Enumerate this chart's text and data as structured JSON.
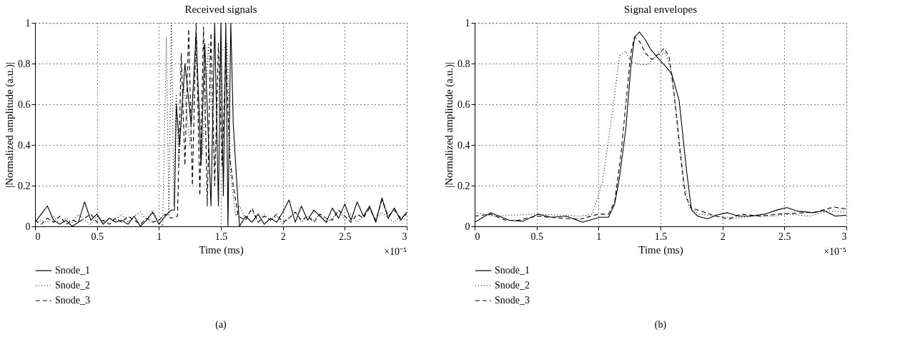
{
  "chart_data": [
    {
      "type": "line",
      "title": "Received signals",
      "xlabel": "Time (ms)",
      "ylabel": "|Normalized amplitude (a.u.)|",
      "annotations": [
        "×10⁻⁵",
        "(a)"
      ],
      "xlim": [
        0,
        3
      ],
      "ylim": [
        0,
        1
      ],
      "xticks": [
        0,
        0.5,
        1,
        1.5,
        2,
        2.5,
        3
      ],
      "yticks": [
        0,
        0.2,
        0.4,
        0.6,
        0.8,
        1
      ],
      "grid": true,
      "legend": "bottom left",
      "series": [
        {
          "name": "Snode_1",
          "color": "#000000",
          "line_style": "solid",
          "x": [
            0,
            0.05,
            0.1,
            0.15,
            0.2,
            0.25,
            0.3,
            0.35,
            0.4,
            0.45,
            0.5,
            0.55,
            0.6,
            0.65,
            0.7,
            0.75,
            0.8,
            0.85,
            0.9,
            0.95,
            1.0,
            1.05,
            1.1,
            1.125,
            1.14,
            1.166,
            1.21,
            1.26,
            1.3,
            1.34,
            1.37,
            1.42,
            1.45,
            1.48,
            1.5,
            1.52,
            1.54,
            1.557,
            1.58,
            1.6,
            1.65,
            1.7,
            1.75,
            1.8,
            1.85,
            1.9,
            1.95,
            2.0,
            2.05,
            2.1,
            2.15,
            2.2,
            2.25,
            2.3,
            2.35,
            2.4,
            2.45,
            2.5,
            2.55,
            2.6,
            2.65,
            2.7,
            2.75,
            2.8,
            2.85,
            2.9,
            2.95,
            3.0
          ],
          "values": [
            0.02,
            0.06,
            0.1,
            0.03,
            0.01,
            0.03,
            0.0,
            0.02,
            0.12,
            0.03,
            0.06,
            0.01,
            0.04,
            0.02,
            0.03,
            0.01,
            0.05,
            0.0,
            0.03,
            0.07,
            0.01,
            0.05,
            0.08,
            0.08,
            0.6,
            0.4,
            0.8,
            0.5,
            0.95,
            0.3,
            0.9,
            0.1,
            1.0,
            0.1,
            1.0,
            0.15,
            1.0,
            0.0,
            1.0,
            0.5,
            0.0,
            0.05,
            0.02,
            0.06,
            0.01,
            0.04,
            0.02,
            0.07,
            0.13,
            0.02,
            0.1,
            0.03,
            0.08,
            0.05,
            0.02,
            0.09,
            0.04,
            0.11,
            0.03,
            0.12,
            0.05,
            0.1,
            0.02,
            0.14,
            0.04,
            0.09,
            0.03,
            0.07
          ]
        },
        {
          "name": "Snode_2",
          "color": "#000000",
          "line_style": "dotted",
          "x": [
            0,
            0.05,
            0.1,
            0.15,
            0.2,
            0.25,
            0.3,
            0.35,
            0.4,
            0.45,
            0.5,
            0.55,
            0.6,
            0.65,
            0.7,
            0.75,
            0.8,
            0.85,
            0.9,
            0.95,
            1.0,
            1.03,
            1.06,
            1.08,
            1.1,
            1.12,
            1.14,
            1.16,
            1.2,
            1.25,
            1.3,
            1.35,
            1.4,
            1.45,
            1.5,
            1.55,
            1.58,
            1.62,
            1.65,
            1.7,
            1.75,
            1.8,
            1.85,
            1.9,
            1.95,
            2.0,
            2.05,
            2.1,
            2.15,
            2.2,
            2.25,
            2.3,
            2.35,
            2.4,
            2.45,
            2.5,
            2.55,
            2.6,
            2.65,
            2.7,
            2.75,
            2.8,
            2.85,
            2.9,
            2.95,
            3.0
          ],
          "values": [
            0.01,
            0.03,
            0.02,
            0.05,
            0.01,
            0.04,
            0.02,
            0.06,
            0.03,
            0.01,
            0.05,
            0.02,
            0.04,
            0.03,
            0.06,
            0.02,
            0.05,
            0.07,
            0.03,
            0.08,
            0.02,
            0.0,
            0.93,
            0.05,
            1.0,
            0.1,
            0.65,
            0.3,
            0.7,
            0.4,
            0.85,
            0.35,
            0.9,
            0.3,
            0.85,
            0.9,
            0.25,
            0.05,
            0.1,
            0.04,
            0.08,
            0.02,
            0.06,
            0.03,
            0.05,
            0.01,
            0.04,
            0.07,
            0.02,
            0.05,
            0.03,
            0.06,
            0.02,
            0.04,
            0.08,
            0.03,
            0.06,
            0.02,
            0.05,
            0.09,
            0.03,
            0.07,
            0.04,
            0.02,
            0.05,
            0.03
          ]
        },
        {
          "name": "Snode_3",
          "color": "#000000",
          "line_style": "dashed",
          "x": [
            0,
            0.05,
            0.1,
            0.15,
            0.2,
            0.25,
            0.3,
            0.35,
            0.4,
            0.45,
            0.5,
            0.55,
            0.6,
            0.65,
            0.7,
            0.75,
            0.8,
            0.85,
            0.9,
            0.95,
            1.0,
            1.05,
            1.1,
            1.15,
            1.18,
            1.21,
            1.24,
            1.27,
            1.3,
            1.33,
            1.36,
            1.39,
            1.42,
            1.45,
            1.48,
            1.51,
            1.54,
            1.57,
            1.6,
            1.64,
            1.7,
            1.75,
            1.8,
            1.85,
            1.9,
            1.95,
            2.0,
            2.05,
            2.1,
            2.15,
            2.2,
            2.25,
            2.3,
            2.35,
            2.4,
            2.45,
            2.5,
            2.55,
            2.6,
            2.65,
            2.7,
            2.75,
            2.8,
            2.85,
            2.9,
            2.95,
            3.0
          ],
          "values": [
            0.03,
            0.01,
            0.04,
            0.02,
            0.05,
            0.01,
            0.03,
            0.02,
            0.04,
            0.06,
            0.02,
            0.03,
            0.01,
            0.04,
            0.02,
            0.05,
            0.03,
            0.01,
            0.04,
            0.02,
            0.03,
            0.06,
            0.04,
            0.05,
            0.85,
            0.3,
            0.97,
            0.2,
            1.0,
            0.15,
            0.98,
            0.1,
            0.95,
            0.2,
            0.9,
            0.3,
            0.85,
            0.35,
            0.2,
            0.05,
            0.03,
            0.09,
            0.02,
            0.05,
            0.03,
            0.06,
            0.02,
            0.04,
            0.07,
            0.03,
            0.05,
            0.02,
            0.06,
            0.04,
            0.03,
            0.08,
            0.05,
            0.02,
            0.06,
            0.04,
            0.09,
            0.03,
            0.13,
            0.05,
            0.08,
            0.04,
            0.06
          ]
        }
      ]
    },
    {
      "type": "line",
      "title": "Signal envelopes",
      "xlabel": "Time (ms)",
      "ylabel": "|Normalized amplitude (a.u.)|",
      "annotations": [
        "×10⁻⁵",
        "(b)"
      ],
      "xlim": [
        0,
        3
      ],
      "ylim": [
        0,
        1
      ],
      "xticks": [
        0,
        0.5,
        1,
        1.5,
        2,
        2.5,
        3
      ],
      "yticks": [
        0,
        0.2,
        0.4,
        0.6,
        0.8,
        1
      ],
      "grid": true,
      "legend": "bottom left",
      "series": [
        {
          "name": "Snode_1",
          "color": "#000000",
          "line_style": "solid",
          "x": [
            0,
            0.13,
            0.28,
            0.39,
            0.51,
            0.62,
            0.74,
            0.87,
            1.01,
            1.08,
            1.13,
            1.17,
            1.22,
            1.26,
            1.29,
            1.33,
            1.38,
            1.42,
            1.49,
            1.55,
            1.59,
            1.65,
            1.71,
            1.75,
            1.8,
            1.88,
            1.95,
            2.04,
            2.13,
            2.22,
            2.34,
            2.45,
            2.52,
            2.61,
            2.73,
            2.82,
            2.91,
            3.0
          ],
          "values": [
            0.02,
            0.067,
            0.03,
            0.025,
            0.06,
            0.045,
            0.05,
            0.02,
            0.045,
            0.045,
            0.11,
            0.245,
            0.48,
            0.78,
            0.93,
            0.955,
            0.915,
            0.87,
            0.82,
            0.78,
            0.75,
            0.62,
            0.275,
            0.08,
            0.05,
            0.037,
            0.055,
            0.067,
            0.05,
            0.05,
            0.06,
            0.082,
            0.092,
            0.074,
            0.067,
            0.077,
            0.05,
            0.055
          ]
        },
        {
          "name": "Snode_2",
          "color": "#000000",
          "line_style": "dotted",
          "x": [
            0,
            0.15,
            0.3,
            0.5,
            0.7,
            0.85,
            0.95,
            1.03,
            1.1,
            1.17,
            1.22,
            1.26,
            1.33,
            1.4,
            1.47,
            1.54,
            1.58,
            1.63,
            1.69,
            1.73,
            1.81,
            1.95,
            2.1,
            2.25,
            2.4,
            2.55,
            2.7,
            2.85,
            3.0
          ],
          "values": [
            0.07,
            0.05,
            0.055,
            0.06,
            0.055,
            0.05,
            0.06,
            0.215,
            0.51,
            0.84,
            0.86,
            0.81,
            0.795,
            0.795,
            0.84,
            0.85,
            0.78,
            0.55,
            0.215,
            0.097,
            0.06,
            0.05,
            0.04,
            0.05,
            0.05,
            0.06,
            0.05,
            0.075,
            0.07
          ]
        },
        {
          "name": "Snode_3",
          "color": "#000000",
          "line_style": "dashed",
          "x": [
            0,
            0.13,
            0.25,
            0.35,
            0.5,
            0.7,
            0.85,
            1.0,
            1.08,
            1.13,
            1.18,
            1.22,
            1.26,
            1.29,
            1.33,
            1.38,
            1.43,
            1.49,
            1.53,
            1.57,
            1.61,
            1.66,
            1.7,
            1.75,
            1.85,
            1.95,
            2.05,
            2.15,
            2.3,
            2.45,
            2.6,
            2.75,
            2.9,
            3.0
          ],
          "values": [
            0.05,
            0.06,
            0.03,
            0.03,
            0.05,
            0.04,
            0.035,
            0.06,
            0.06,
            0.12,
            0.35,
            0.6,
            0.85,
            0.93,
            0.91,
            0.85,
            0.82,
            0.85,
            0.875,
            0.83,
            0.65,
            0.35,
            0.15,
            0.09,
            0.07,
            0.05,
            0.035,
            0.06,
            0.05,
            0.06,
            0.065,
            0.07,
            0.095,
            0.085
          ]
        }
      ]
    }
  ]
}
